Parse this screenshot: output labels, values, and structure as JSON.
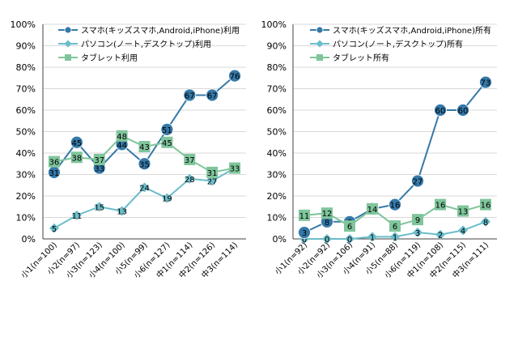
{
  "colors": {
    "smartphone": "#3579A8",
    "pc": "#6BBDCB",
    "tablet": "#7FC59B",
    "grid": "#D9D9D9",
    "axis": "#404040",
    "text": "#000000"
  },
  "chart_data": [
    {
      "type": "line",
      "title": "",
      "xlabel": "",
      "ylabel": "",
      "ylim": [
        0,
        100
      ],
      "y_unit": "%",
      "y_ticks": [
        0,
        10,
        20,
        30,
        40,
        50,
        60,
        70,
        80,
        90,
        100
      ],
      "grid": "horizontal",
      "legend_position": "top-left",
      "categories": [
        "小1(n=100)",
        "小2(n=97)",
        "小3(n=123)",
        "小4(n=100)",
        "小5(n=99)",
        "小6(n=127)",
        "中1(n=114)",
        "中2(n=126)",
        "中3(n=114)"
      ],
      "series": [
        {
          "name": "スマホ(キッズスマホ,Android,iPhone)利用",
          "marker": "circle",
          "color_key": "smartphone",
          "values": [
            31,
            45,
            33,
            44,
            35,
            51,
            67,
            67,
            76
          ]
        },
        {
          "name": "パソコン(ノート,デスクトップ)利用",
          "marker": "diamond",
          "color_key": "pc",
          "values": [
            5,
            11,
            15,
            13,
            24,
            19,
            28,
            27,
            33
          ]
        },
        {
          "name": "タブレット利用",
          "marker": "square",
          "color_key": "tablet",
          "values": [
            36,
            38,
            37,
            48,
            43,
            45,
            37,
            31,
            33
          ]
        }
      ]
    },
    {
      "type": "line",
      "title": "",
      "xlabel": "",
      "ylabel": "",
      "ylim": [
        0,
        100
      ],
      "y_unit": "%",
      "y_ticks": [
        0,
        10,
        20,
        30,
        40,
        50,
        60,
        70,
        80,
        90,
        100
      ],
      "grid": "horizontal",
      "legend_position": "top-left",
      "categories": [
        "小1(n=92)",
        "小2(n=92)",
        "小3(n=106)",
        "小4(n=91)",
        "小5(n=88)",
        "小6(n=119)",
        "中1(n=108)",
        "中2(n=115)",
        "中3(n=111)"
      ],
      "series": [
        {
          "name": "スマホ(キッズスマホ,Android,iPhone)所有",
          "marker": "circle",
          "color_key": "smartphone",
          "values": [
            3,
            8,
            8,
            14,
            16,
            27,
            60,
            60,
            73
          ]
        },
        {
          "name": "パソコン(ノート,デスクトップ)所有",
          "marker": "diamond",
          "color_key": "pc",
          "values": [
            0,
            0,
            0,
            1,
            1,
            3,
            2,
            4,
            8
          ]
        },
        {
          "name": "タブレット所有",
          "marker": "square",
          "color_key": "tablet",
          "values": [
            11,
            12,
            6,
            14,
            6,
            9,
            16,
            13,
            16
          ]
        }
      ]
    }
  ]
}
